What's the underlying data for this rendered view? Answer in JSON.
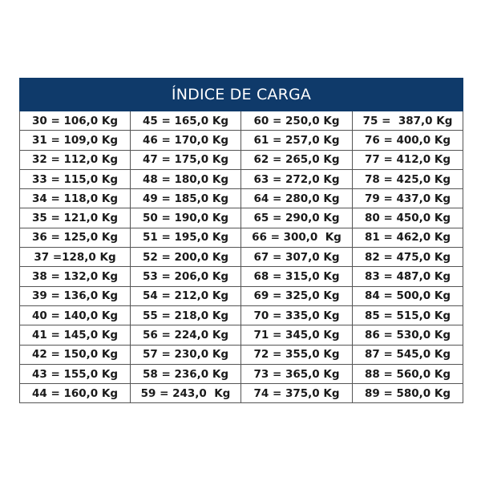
{
  "title": "ÍNDICE DE CARGA",
  "header_color": "#0f3a6a",
  "columns": [
    [
      "30 = 106,0 Kg",
      "31 = 109,0 Kg",
      "32 = 112,0 Kg",
      "33 = 115,0 Kg",
      "34 = 118,0 Kg",
      "35 = 121,0 Kg",
      "36 = 125,0 Kg",
      "37 =128,0 Kg",
      "38 = 132,0 Kg",
      "39 = 136,0 Kg",
      "40 = 140,0 Kg",
      "41 = 145,0 Kg",
      "42 = 150,0 Kg",
      "43 = 155,0 Kg",
      "44 = 160,0 Kg"
    ],
    [
      "45 = 165,0 Kg",
      "46 = 170,0 Kg",
      "47 = 175,0 Kg",
      "48 = 180,0 Kg",
      "49 = 185,0 Kg",
      "50 = 190,0 Kg",
      "51 = 195,0 Kg",
      "52 = 200,0 Kg",
      "53 = 206,0 Kg",
      "54 = 212,0 Kg",
      "55 = 218,0 Kg",
      "56 = 224,0 Kg",
      "57 = 230,0 Kg",
      "58 = 236,0 Kg",
      "59 = 243,0  Kg"
    ],
    [
      "60 = 250,0 Kg",
      "61 = 257,0 Kg",
      "62 = 265,0 Kg",
      "63 = 272,0 Kg",
      "64 = 280,0 Kg",
      "65 = 290,0 Kg",
      "66 = 300,0  Kg",
      "67 = 307,0 Kg",
      "68 = 315,0 Kg",
      "69 = 325,0 Kg",
      "70 = 335,0 Kg",
      "71 = 345,0 Kg",
      "72 = 355,0 Kg",
      "73 = 365,0 Kg",
      "74 = 375,0 Kg"
    ],
    [
      "75 =  387,0 Kg",
      "76 = 400,0 Kg",
      "77 = 412,0 Kg",
      "78 = 425,0 Kg",
      "79 = 437,0 Kg",
      "80 = 450,0 Kg",
      "81 = 462,0 Kg",
      "82 = 475,0 Kg",
      "83 = 487,0 Kg",
      "84 = 500,0 Kg",
      "85 = 515,0 Kg",
      "86 = 530,0 Kg",
      "87 = 545,0 Kg",
      "88 = 560,0 Kg",
      "89 = 580,0 Kg"
    ]
  ]
}
